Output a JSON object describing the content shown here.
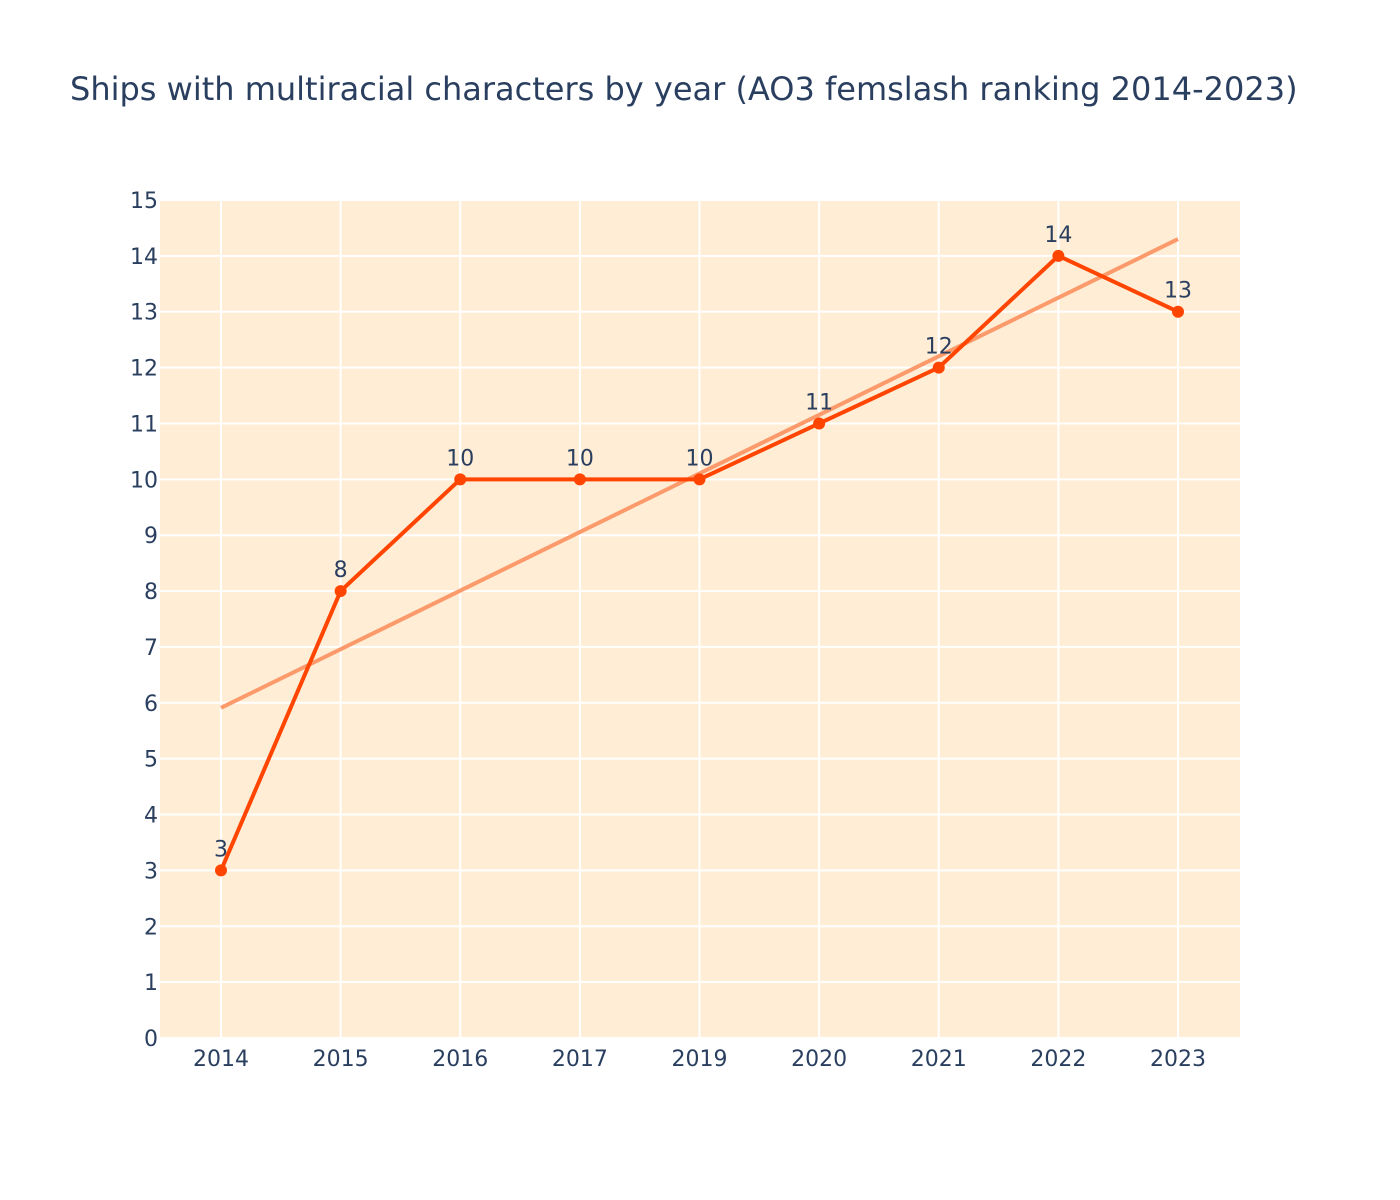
{
  "colors": {
    "plot_background": "#ffedd5",
    "grid": "#ffffff",
    "series_line": "#ff4500",
    "trend_line": "#fc9a6b",
    "text": "#2a3f5f"
  },
  "chart_data": {
    "type": "line",
    "title": "Ships with multiracial characters by year (AO3 femslash ranking 2014-2023)",
    "xlabel": "",
    "ylabel": "",
    "categories": [
      "2014",
      "2015",
      "2016",
      "2017",
      "2019",
      "2020",
      "2021",
      "2022",
      "2023"
    ],
    "series": [
      {
        "values": [
          3,
          8,
          10,
          10,
          10,
          11,
          12,
          14,
          13
        ],
        "labels": [
          "3",
          "8",
          "10",
          "10",
          "10",
          "11",
          "12",
          "14",
          "13"
        ]
      }
    ],
    "trendline": {
      "start": 5.91,
      "end": 14.3
    },
    "yticks": [
      "0",
      "1",
      "2",
      "3",
      "4",
      "5",
      "6",
      "7",
      "8",
      "9",
      "10",
      "11",
      "12",
      "13",
      "14",
      "15"
    ],
    "ylim": [
      0,
      15
    ],
    "grid": true,
    "legend": "none"
  }
}
